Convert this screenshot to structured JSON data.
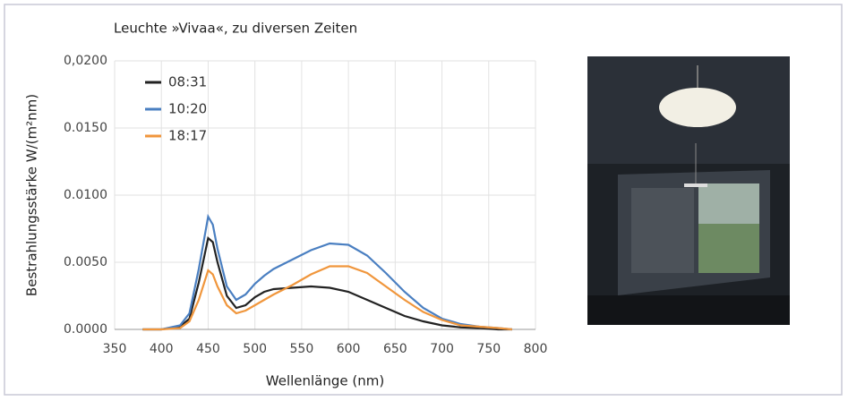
{
  "chart_data": {
    "type": "line",
    "title": "Leuchte »Vivaa«, zu diversen Zeiten",
    "y_label": "Bestrahlungsstärke W/(m²nm)",
    "x_label": "Wellenlänge (nm)",
    "x": [
      380,
      400,
      420,
      430,
      440,
      450,
      455,
      460,
      470,
      480,
      490,
      500,
      510,
      520,
      540,
      560,
      580,
      600,
      620,
      640,
      660,
      680,
      700,
      720,
      740,
      760,
      775
    ],
    "series": [
      {
        "name": "08:31",
        "color": "#222222",
        "values": [
          0,
          0,
          0.0002,
          0.0008,
          0.0035,
          0.0068,
          0.0065,
          0.005,
          0.0025,
          0.0016,
          0.0018,
          0.0024,
          0.0028,
          0.003,
          0.0031,
          0.0032,
          0.0031,
          0.0028,
          0.0022,
          0.0016,
          0.001,
          0.0006,
          0.0003,
          0.00015,
          0.0001,
          0,
          0
        ]
      },
      {
        "name": "10:20",
        "color": "#4a7fc1",
        "values": [
          0,
          0,
          0.0003,
          0.0012,
          0.0045,
          0.0084,
          0.0078,
          0.006,
          0.0032,
          0.0022,
          0.0026,
          0.0034,
          0.004,
          0.0045,
          0.0052,
          0.0059,
          0.0064,
          0.0063,
          0.0055,
          0.0042,
          0.0028,
          0.0016,
          0.0008,
          0.0004,
          0.0002,
          0.0001,
          0
        ]
      },
      {
        "name": "18:17",
        "color": "#f0963c",
        "values": [
          0,
          0,
          0.0001,
          0.0006,
          0.0022,
          0.0044,
          0.0041,
          0.0032,
          0.0018,
          0.0012,
          0.0014,
          0.0018,
          0.0022,
          0.0026,
          0.0033,
          0.0041,
          0.0047,
          0.0047,
          0.0042,
          0.0032,
          0.0022,
          0.0013,
          0.0007,
          0.0003,
          0.0002,
          0.0001,
          0
        ]
      }
    ],
    "xlim": [
      350,
      800
    ],
    "xticks": [
      350,
      400,
      450,
      500,
      550,
      600,
      650,
      700,
      750,
      800
    ],
    "ylim": [
      0,
      0.02
    ],
    "yticks": [
      {
        "value": 0,
        "label": "0.0000"
      },
      {
        "value": 0.005,
        "label": "0.0050"
      },
      {
        "value": 0.01,
        "label": "0.0100"
      },
      {
        "value": 0.015,
        "label": "0.0150"
      },
      {
        "value": 0.02,
        "label": "0,0200"
      }
    ],
    "grid": true,
    "legend": "upper left"
  }
}
